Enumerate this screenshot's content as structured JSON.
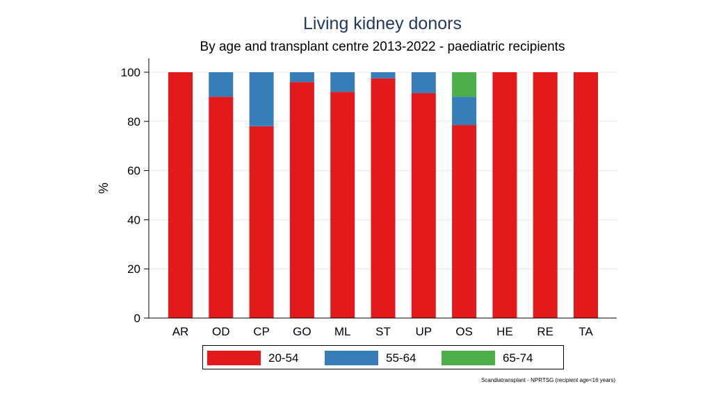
{
  "chart_data": {
    "type": "bar",
    "stacked": true,
    "title": "Living kidney donors",
    "subtitle": "By age and transplant centre 2013-2022 - paediatric recipients",
    "ylabel": "%",
    "xlabel": "",
    "ylim": [
      0,
      100
    ],
    "yticks": [
      0,
      20,
      40,
      60,
      80,
      100
    ],
    "grid": true,
    "legend_position": "bottom",
    "categories": [
      "AR",
      "OD",
      "CP",
      "GO",
      "ML",
      "ST",
      "UP",
      "OS",
      "HE",
      "RE",
      "TA"
    ],
    "series": [
      {
        "name": "20-54",
        "color": "#e31a1c",
        "values": [
          100,
          90,
          78,
          96,
          92,
          97.5,
          91.5,
          78.5,
          100,
          100,
          100
        ]
      },
      {
        "name": "55-64",
        "color": "#377eb8",
        "values": [
          0,
          10,
          22,
          4,
          8,
          2.5,
          8.5,
          11.5,
          0,
          0,
          0
        ]
      },
      {
        "name": "65-74",
        "color": "#4daf4a",
        "values": [
          0,
          0,
          0,
          0,
          0,
          0,
          0,
          10,
          0,
          0,
          0
        ]
      }
    ],
    "note": "Scandiatransplant - NPRTSG (recipient age<16 years)"
  }
}
